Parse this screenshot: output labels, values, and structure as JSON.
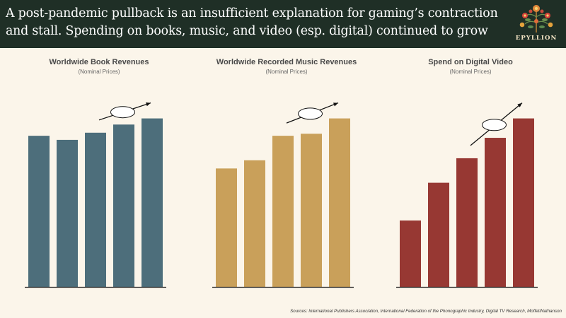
{
  "header": {
    "title_line1": "A post-pandemic pullback is an insufficient explanation for gaming’s contraction",
    "title_line2": "and stall. Spending on books, music, and video (esp. digital) continued to grow",
    "logo_text": "EPYLLION",
    "logo_icon": "floral-ornament-icon",
    "background": "#1f2f26"
  },
  "chart_data": [
    {
      "type": "bar",
      "title": "Worldwide Book Revenues",
      "subtitle": "(Nominal Prices)",
      "values": [
        0.74,
        0.72,
        0.755,
        0.795,
        0.825
      ],
      "ylim": [
        0,
        1
      ],
      "color": "#4d6e7b",
      "annotation": "trend-arrow-with-blank-oval"
    },
    {
      "type": "bar",
      "title": "Worldwide Recorded Music Revenues",
      "subtitle": "(Nominal Prices)",
      "values": [
        0.58,
        0.62,
        0.74,
        0.75,
        0.825
      ],
      "ylim": [
        0,
        1
      ],
      "color": "#c9a05a",
      "annotation": "trend-arrow-with-blank-oval"
    },
    {
      "type": "bar",
      "title": "Spend on Digital Video",
      "subtitle": "(Nominal Prices)",
      "values": [
        0.325,
        0.51,
        0.63,
        0.73,
        0.825
      ],
      "ylim": [
        0,
        1
      ],
      "color": "#973833",
      "annotation": "trend-arrow-with-blank-oval"
    }
  ],
  "footer": {
    "sources": "Sources: International Publishers Association, International Federation of the Phonographic Industry, Digital TV Research, MoffettNathanson"
  }
}
